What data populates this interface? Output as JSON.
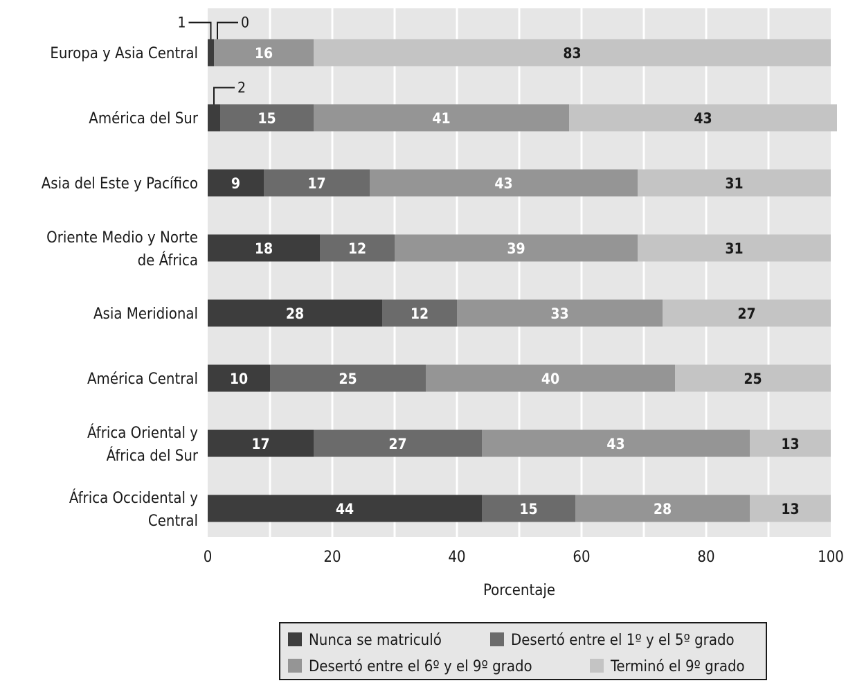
{
  "chart_data": {
    "type": "bar",
    "orientation": "horizontal",
    "stacked": true,
    "title": "",
    "xlabel": "Porcentaje",
    "ylabel": "",
    "xlim": [
      0,
      100
    ],
    "x_ticks": [
      0,
      20,
      40,
      60,
      80,
      100
    ],
    "grid": true,
    "legend_position": "bottom",
    "categories": [
      [
        "Europa y Asia Central"
      ],
      [
        "América del Sur"
      ],
      [
        "Asia del Este y Pacífico"
      ],
      [
        "Oriente Medio y Norte",
        "de África"
      ],
      [
        "Asia Meridional"
      ],
      [
        "América Central"
      ],
      [
        "África Oriental y",
        "África del Sur"
      ],
      [
        "África Occidental y",
        "Central"
      ]
    ],
    "series": [
      {
        "name": "Nunca se matriculó",
        "color": "#3d3d3d",
        "label_color": "#ffffff",
        "values": [
          1,
          2,
          9,
          18,
          28,
          10,
          17,
          44
        ]
      },
      {
        "name": "Desertó entre el 1º y el 5º grado",
        "color": "#6b6b6b",
        "label_color": "#ffffff",
        "values": [
          0,
          15,
          17,
          12,
          12,
          25,
          27,
          15
        ]
      },
      {
        "name": "Desertó entre el 6º y el 9º grado",
        "color": "#959595",
        "label_color": "#ffffff",
        "values": [
          16,
          41,
          43,
          39,
          33,
          40,
          43,
          28
        ]
      },
      {
        "name": "Terminó el 9º grado",
        "color": "#c4c4c4",
        "label_color": "#1a1a1a",
        "values": [
          83,
          43,
          31,
          31,
          27,
          25,
          13,
          13
        ]
      }
    ],
    "callouts": [
      {
        "category_index": 0,
        "series_index": 0,
        "text": "1"
      },
      {
        "category_index": 0,
        "series_index": 1,
        "text": "0"
      },
      {
        "category_index": 1,
        "series_index": 0,
        "text": "2"
      }
    ],
    "background_color": "#e6e6e6",
    "gridline_color": "#ffffff"
  }
}
